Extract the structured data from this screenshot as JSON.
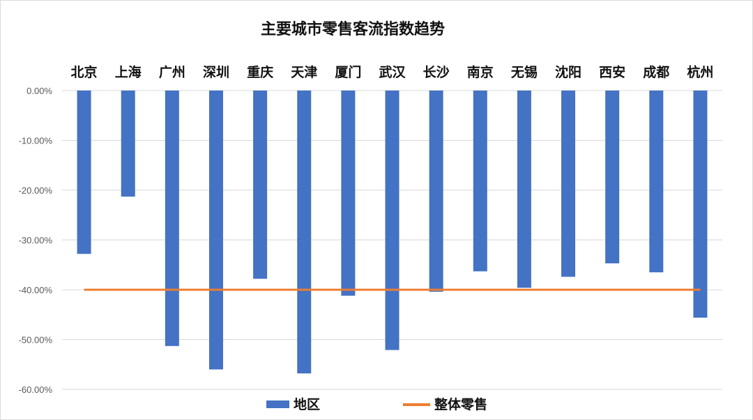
{
  "chart_data": {
    "type": "bar",
    "title": "主要城市零售客流指数趋势",
    "categories": [
      "北京",
      "上海",
      "广州",
      "深圳",
      "重庆",
      "天津",
      "厦门",
      "武汉",
      "长沙",
      "南京",
      "无锡",
      "沈阳",
      "西安",
      "成都",
      "杭州"
    ],
    "series": [
      {
        "name": "地区",
        "type": "bar",
        "color": "#4472C4",
        "values": [
          -32.8,
          -21.3,
          -51.3,
          -56.0,
          -37.8,
          -56.8,
          -41.2,
          -52.1,
          -40.4,
          -36.3,
          -39.6,
          -37.4,
          -34.7,
          -36.5,
          -45.6
        ]
      },
      {
        "name": "整体零售",
        "type": "line",
        "color": "#ED7D31",
        "value": -40.0
      }
    ],
    "ylim": [
      -60,
      0
    ],
    "yticks": [
      0,
      -10,
      -20,
      -30,
      -40,
      -50,
      -60
    ],
    "ytick_labels": [
      "0.00%",
      "-10.00%",
      "-20.00%",
      "-30.00%",
      "-40.00%",
      "-50.00%",
      "-60.00%"
    ],
    "xlabel": "",
    "ylabel": "",
    "category_axis_position": "top",
    "grid": true,
    "legend": "bottom"
  }
}
